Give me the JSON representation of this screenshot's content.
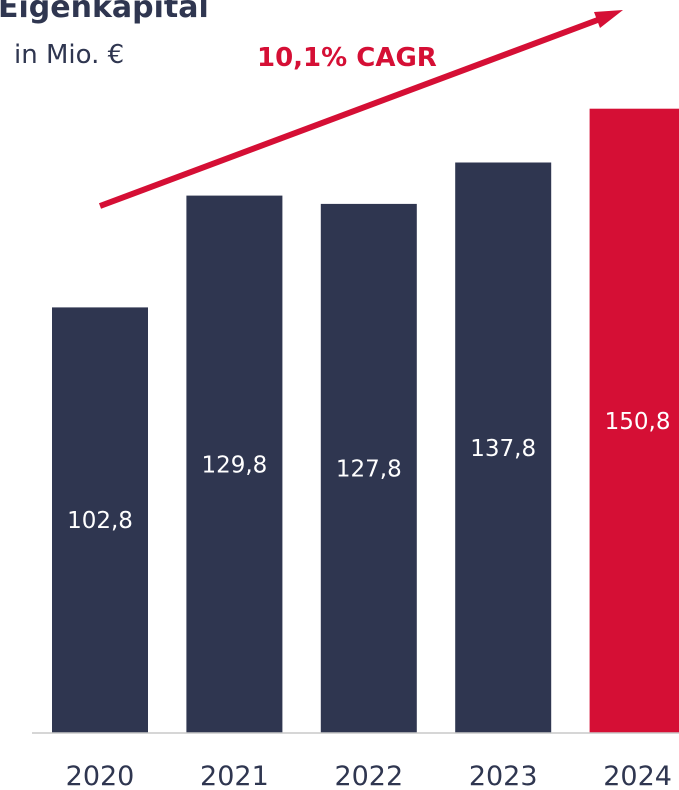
{
  "chart_data": {
    "type": "bar",
    "title": "Eigenkapital",
    "subtitle": "in Mio. €",
    "annotation": "10,1% CAGR",
    "categories": [
      "2020",
      "2021",
      "2022",
      "2023",
      "2024"
    ],
    "values": [
      102.8,
      129.8,
      127.8,
      137.8,
      150.8
    ],
    "value_labels": [
      "102,8",
      "129,8",
      "127,8",
      "137,8",
      "150,8"
    ],
    "colors": [
      "#2f3650",
      "#2f3650",
      "#2f3650",
      "#2f3650",
      "#d50f35"
    ],
    "accent_color": "#d50f35",
    "axis_color": "#c8c8c8",
    "text_color": "#2f3650",
    "grid": false,
    "legend": "none",
    "ylim": [
      0,
      160
    ]
  }
}
